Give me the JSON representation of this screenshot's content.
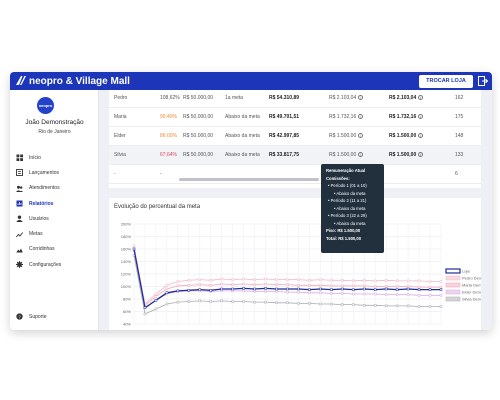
{
  "app": {
    "title": "neopro & Village Mall",
    "switch_store": "TROCAR LOJA",
    "avatar_text": "neopro"
  },
  "user": {
    "name": "João Demonstração",
    "city": "Rio de Janeiro"
  },
  "nav": [
    {
      "label": "Início",
      "icon": "home-icon"
    },
    {
      "label": "Lançamentos",
      "icon": "list-icon"
    },
    {
      "label": "Atendimentos",
      "icon": "users-icon"
    },
    {
      "label": "Relatórios",
      "icon": "report-icon",
      "active": true
    },
    {
      "label": "Usuários",
      "icon": "user-icon"
    },
    {
      "label": "Metas",
      "icon": "trend-icon"
    },
    {
      "label": "Corridinhas",
      "icon": "flag-icon"
    },
    {
      "label": "Configurações",
      "icon": "gear-icon"
    }
  ],
  "support": {
    "label": "Suporte"
  },
  "table": {
    "rows": [
      {
        "name": "Pedro",
        "pct": "108,62%",
        "pct_color": "#555555",
        "goal": "R$ 50.000,00",
        "status": "1a meta",
        "sales": "R$ 54.310,89",
        "comm1": "R$ 2.103,04",
        "comm2": "R$ 2.103,04",
        "count": "162"
      },
      {
        "name": "Maria",
        "pct": "99,40%",
        "pct_color": "#f08a3c",
        "goal": "R$ 50.000,00",
        "status": "Abaixo da meta",
        "sales": "R$ 49.701,51",
        "comm1": "R$ 1.732,16",
        "comm2": "R$ 1.732,16",
        "count": "175"
      },
      {
        "name": "Elder",
        "pct": "86,00%",
        "pct_color": "#f08a3c",
        "goal": "R$ 50.000,00",
        "status": "Abaixo da meta",
        "sales": "R$ 42.997,85",
        "comm1": "R$ 1.500,00",
        "comm2": "R$ 1.500,00",
        "count": "148"
      },
      {
        "name": "Silvia",
        "pct": "67,64%",
        "pct_color": "#e2405a",
        "goal": "R$ 50.000,00",
        "status": "Abaixo da meta",
        "sales": "R$ 33.817,75",
        "comm1": "R$ 1.500,00",
        "comm2": "R$ 1.500,00",
        "count": "133"
      },
      {
        "name": "-",
        "pct": "-",
        "pct_color": "#555555",
        "goal": "",
        "status": "",
        "sales": "",
        "comm1": "",
        "comm2": "",
        "count": "6"
      }
    ]
  },
  "tooltip": {
    "lines": [
      "Remuneração Atual",
      "Comissões:",
      "• Período 1 (01 a 10)",
      "• Abaixo da meta",
      "• Período 2 (11 a 21)",
      "• Abaixo da meta",
      "• Período 3 (22 a 29)",
      "• Abaixo da meta",
      "Piso: R$ 1.500,00",
      "Total: R$ 1.500,00"
    ]
  },
  "chart": {
    "title": "Evolução do percentual da meta"
  },
  "chart_data": {
    "type": "line",
    "title": "Evolução do percentual da meta",
    "ylim": [
      40,
      200
    ],
    "y_ticks": [
      "200%",
      "180%",
      "160%",
      "140%",
      "120%",
      "100%",
      "80%",
      "60%",
      "40%"
    ],
    "x": [
      1,
      2,
      3,
      4,
      5,
      6,
      7,
      8,
      9,
      10,
      11,
      12,
      13,
      14,
      15,
      16,
      17,
      18,
      19,
      20,
      21,
      22,
      23,
      24,
      25,
      26,
      27,
      28,
      29
    ],
    "grid": true,
    "legend_position": "right",
    "series": [
      {
        "name": "Loja",
        "color": "#1f2d9c",
        "values": [
          160,
          66,
          78,
          90,
          93,
          94,
          95,
          94,
          96,
          96,
          97,
          96,
          97,
          96,
          96,
          96,
          95,
          96,
          95,
          96,
          95,
          96,
          95,
          96,
          95,
          96,
          95,
          95,
          95
        ]
      },
      {
        "name": "Pedro Demo",
        "color": "#f1b7c6",
        "values": [
          165,
          72,
          88,
          102,
          108,
          110,
          111,
          110,
          112,
          111,
          112,
          111,
          112,
          111,
          111,
          111,
          110,
          111,
          110,
          110,
          109,
          110,
          109,
          110,
          109,
          109,
          109,
          108,
          108
        ]
      },
      {
        "name": "Maria Demo",
        "color": "#f5a6b6",
        "values": [
          162,
          70,
          84,
          96,
          101,
          102,
          103,
          102,
          104,
          103,
          104,
          103,
          104,
          103,
          103,
          102,
          102,
          102,
          101,
          101,
          101,
          101,
          100,
          100,
          100,
          100,
          99,
          99,
          99
        ]
      },
      {
        "name": "Elder Demo",
        "color": "#d9a9e0",
        "values": [
          158,
          66,
          78,
          88,
          92,
          93,
          93,
          92,
          93,
          93,
          93,
          92,
          92,
          92,
          91,
          91,
          90,
          90,
          89,
          89,
          88,
          88,
          88,
          87,
          87,
          87,
          86,
          86,
          86
        ]
      },
      {
        "name": "Silvia Demo",
        "color": "#a9a9b3",
        "values": [
          150,
          56,
          64,
          72,
          75,
          76,
          77,
          76,
          77,
          76,
          76,
          75,
          75,
          74,
          74,
          73,
          73,
          72,
          72,
          71,
          71,
          70,
          70,
          69,
          69,
          69,
          68,
          68,
          68
        ]
      }
    ]
  }
}
